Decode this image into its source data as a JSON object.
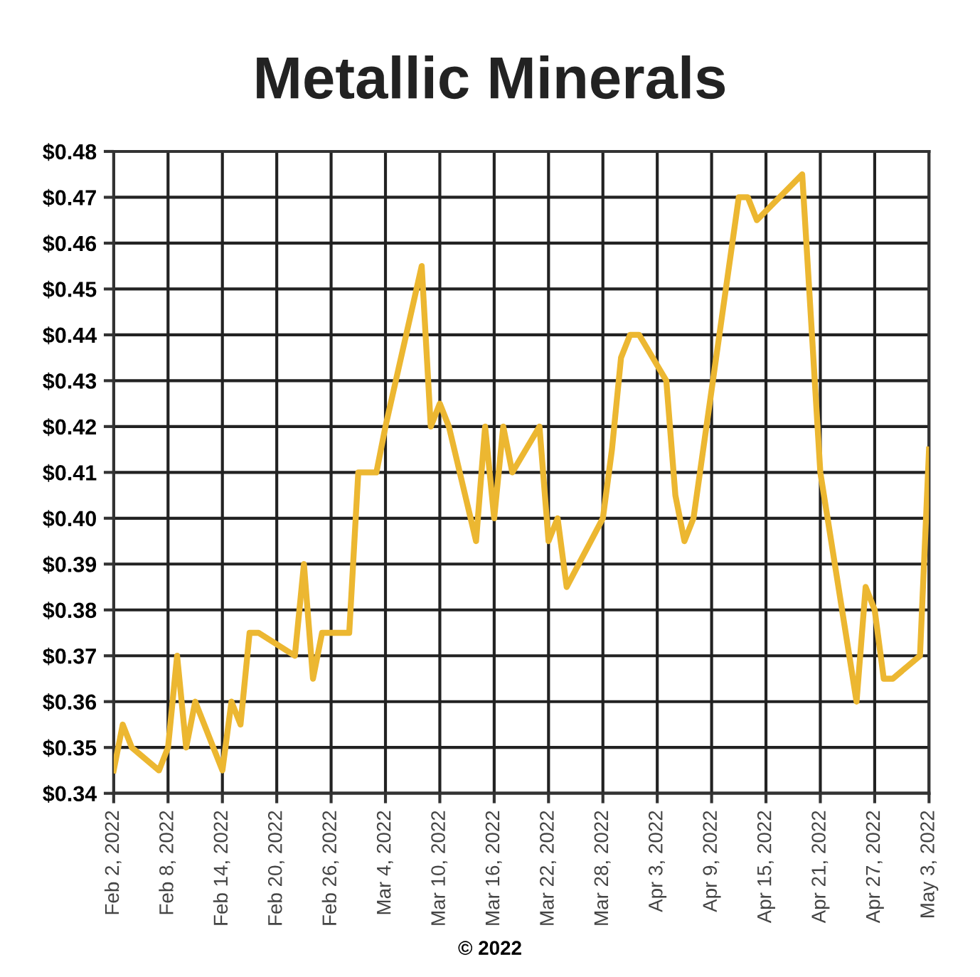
{
  "chart_data": {
    "type": "line",
    "title": "Metallic Minerals",
    "x": [
      "2022-02-02",
      "2022-02-03",
      "2022-02-04",
      "2022-02-07",
      "2022-02-08",
      "2022-02-09",
      "2022-02-10",
      "2022-02-11",
      "2022-02-14",
      "2022-02-15",
      "2022-02-16",
      "2022-02-17",
      "2022-02-18",
      "2022-02-22",
      "2022-02-23",
      "2022-02-24",
      "2022-02-25",
      "2022-02-28",
      "2022-03-01",
      "2022-03-03",
      "2022-03-04",
      "2022-03-08",
      "2022-03-09",
      "2022-03-10",
      "2022-03-11",
      "2022-03-14",
      "2022-03-15",
      "2022-03-16",
      "2022-03-17",
      "2022-03-18",
      "2022-03-21",
      "2022-03-22",
      "2022-03-23",
      "2022-03-24",
      "2022-03-28",
      "2022-03-29",
      "2022-03-30",
      "2022-03-31",
      "2022-04-01",
      "2022-04-04",
      "2022-04-05",
      "2022-04-06",
      "2022-04-07",
      "2022-04-12",
      "2022-04-13",
      "2022-04-14",
      "2022-04-19",
      "2022-04-21",
      "2022-04-25",
      "2022-04-26",
      "2022-04-27",
      "2022-04-28",
      "2022-04-29",
      "2022-05-02",
      "2022-05-03"
    ],
    "series": [
      {
        "color": "#ecb731",
        "values": [
          0.345,
          0.355,
          0.35,
          0.345,
          0.35,
          0.37,
          0.35,
          0.36,
          0.345,
          0.36,
          0.355,
          0.375,
          0.375,
          0.37,
          0.39,
          0.365,
          0.375,
          0.375,
          0.41,
          0.41,
          0.42,
          0.455,
          0.42,
          0.425,
          0.42,
          0.395,
          0.42,
          0.4,
          0.42,
          0.41,
          0.42,
          0.395,
          0.4,
          0.385,
          0.4,
          0.415,
          0.435,
          0.44,
          0.44,
          0.43,
          0.405,
          0.395,
          0.4,
          0.47,
          0.47,
          0.465,
          0.475,
          0.41,
          0.36,
          0.385,
          0.38,
          0.365,
          0.365,
          0.37,
          0.415
        ]
      }
    ],
    "xlim": [
      "2022-02-02",
      "2022-05-03"
    ],
    "xticks": [
      {
        "value": "2022-02-02",
        "label": "Feb 2, 2022"
      },
      {
        "value": "2022-02-08",
        "label": "Feb 8, 2022"
      },
      {
        "value": "2022-02-14",
        "label": "Feb 14, 2022"
      },
      {
        "value": "2022-02-20",
        "label": "Feb 20, 2022"
      },
      {
        "value": "2022-02-26",
        "label": "Feb 26, 2022"
      },
      {
        "value": "2022-03-04",
        "label": "Mar 4, 2022"
      },
      {
        "value": "2022-03-10",
        "label": "Mar 10, 2022"
      },
      {
        "value": "2022-03-16",
        "label": "Mar 16, 2022"
      },
      {
        "value": "2022-03-22",
        "label": "Mar 22, 2022"
      },
      {
        "value": "2022-03-28",
        "label": "Mar 28, 2022"
      },
      {
        "value": "2022-04-03",
        "label": "Apr 3, 2022"
      },
      {
        "value": "2022-04-09",
        "label": "Apr 9, 2022"
      },
      {
        "value": "2022-04-15",
        "label": "Apr 15, 2022"
      },
      {
        "value": "2022-04-21",
        "label": "Apr 21, 2022"
      },
      {
        "value": "2022-04-27",
        "label": "Apr 27, 2022"
      },
      {
        "value": "2022-05-03",
        "label": "May 3, 2022"
      }
    ],
    "ylim": [
      0.34,
      0.48
    ],
    "yticks": [
      {
        "value": 0.34,
        "label": "$0.34"
      },
      {
        "value": 0.35,
        "label": "$0.35"
      },
      {
        "value": 0.36,
        "label": "$0.36"
      },
      {
        "value": 0.37,
        "label": "$0.37"
      },
      {
        "value": 0.38,
        "label": "$0.38"
      },
      {
        "value": 0.39,
        "label": "$0.39"
      },
      {
        "value": 0.4,
        "label": "$0.40"
      },
      {
        "value": 0.41,
        "label": "$0.41"
      },
      {
        "value": 0.42,
        "label": "$0.42"
      },
      {
        "value": 0.43,
        "label": "$0.43"
      },
      {
        "value": 0.44,
        "label": "$0.44"
      },
      {
        "value": 0.45,
        "label": "$0.45"
      },
      {
        "value": 0.46,
        "label": "$0.46"
      },
      {
        "value": 0.47,
        "label": "$0.47"
      },
      {
        "value": 0.48,
        "label": "$0.48"
      }
    ],
    "grid": true,
    "marker": "none",
    "line_style": "solid",
    "annotations": [
      "© 2022"
    ]
  }
}
